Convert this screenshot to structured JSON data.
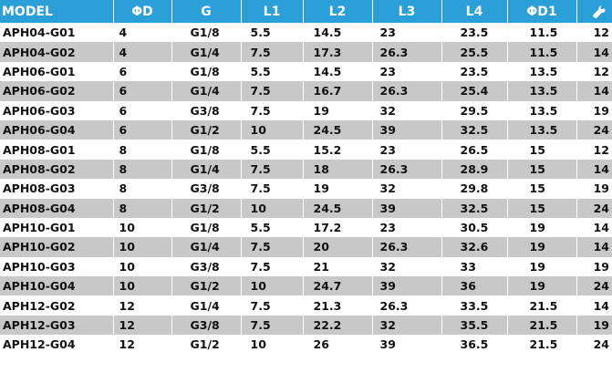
{
  "table": {
    "headers": {
      "model": "MODEL",
      "d": "ΦD",
      "g": "G",
      "l1": "L1",
      "l2": "L2",
      "l3": "L3",
      "l4": "L4",
      "d1": "ΦD1",
      "wrench_icon": "wrench-icon"
    },
    "header_color": "#2a9fd8",
    "stripe_color": "#c8c8c8",
    "rows": [
      {
        "model": "APH04-G01",
        "d": "4",
        "g": "G1/8",
        "l1": "5.5",
        "l2": "14.5",
        "l3": "23",
        "l4": "23.5",
        "d1": "11.5",
        "wr": "12"
      },
      {
        "model": "APH04-G02",
        "d": "4",
        "g": "G1/4",
        "l1": "7.5",
        "l2": "17.3",
        "l3": "26.3",
        "l4": "25.5",
        "d1": "11.5",
        "wr": "14"
      },
      {
        "model": "APH06-G01",
        "d": "6",
        "g": "G1/8",
        "l1": "5.5",
        "l2": "14.5",
        "l3": "23",
        "l4": "23.5",
        "d1": "13.5",
        "wr": "12"
      },
      {
        "model": "APH06-G02",
        "d": "6",
        "g": "G1/4",
        "l1": "7.5",
        "l2": "16.7",
        "l3": "26.3",
        "l4": "25.4",
        "d1": "13.5",
        "wr": "14"
      },
      {
        "model": "APH06-G03",
        "d": "6",
        "g": "G3/8",
        "l1": "7.5",
        "l2": "19",
        "l3": "32",
        "l4": "29.5",
        "d1": "13.5",
        "wr": "19"
      },
      {
        "model": "APH06-G04",
        "d": "6",
        "g": "G1/2",
        "l1": "10",
        "l2": "24.5",
        "l3": "39",
        "l4": "32.5",
        "d1": "13.5",
        "wr": "24"
      },
      {
        "model": "APH08-G01",
        "d": "8",
        "g": "G1/8",
        "l1": "5.5",
        "l2": "15.2",
        "l3": "23",
        "l4": "26.5",
        "d1": "15",
        "wr": "12"
      },
      {
        "model": "APH08-G02",
        "d": "8",
        "g": "G1/4",
        "l1": "7.5",
        "l2": "18",
        "l3": "26.3",
        "l4": "28.9",
        "d1": "15",
        "wr": "14"
      },
      {
        "model": "APH08-G03",
        "d": "8",
        "g": "G3/8",
        "l1": "7.5",
        "l2": "19",
        "l3": "32",
        "l4": "29.8",
        "d1": "15",
        "wr": "19"
      },
      {
        "model": "APH08-G04",
        "d": "8",
        "g": "G1/2",
        "l1": "10",
        "l2": "24.5",
        "l3": "39",
        "l4": "32.5",
        "d1": "15",
        "wr": "24"
      },
      {
        "model": "APH10-G01",
        "d": "10",
        "g": "G1/8",
        "l1": "5.5",
        "l2": "17.2",
        "l3": "23",
        "l4": "30.5",
        "d1": "19",
        "wr": "14"
      },
      {
        "model": "APH10-G02",
        "d": "10",
        "g": "G1/4",
        "l1": "7.5",
        "l2": "20",
        "l3": "26.3",
        "l4": "32.6",
        "d1": "19",
        "wr": "14"
      },
      {
        "model": "APH10-G03",
        "d": "10",
        "g": "G3/8",
        "l1": "7.5",
        "l2": "21",
        "l3": "32",
        "l4": "33",
        "d1": "19",
        "wr": "19"
      },
      {
        "model": "APH10-G04",
        "d": "10",
        "g": "G1/2",
        "l1": "10",
        "l2": "24.7",
        "l3": "39",
        "l4": "36",
        "d1": "19",
        "wr": "24"
      },
      {
        "model": "APH12-G02",
        "d": "12",
        "g": "G1/4",
        "l1": "7.5",
        "l2": "21.3",
        "l3": "26.3",
        "l4": "33.5",
        "d1": "21.5",
        "wr": "14"
      },
      {
        "model": "APH12-G03",
        "d": "12",
        "g": "G3/8",
        "l1": "7.5",
        "l2": "22.2",
        "l3": "32",
        "l4": "35.5",
        "d1": "21.5",
        "wr": "19"
      },
      {
        "model": "APH12-G04",
        "d": "12",
        "g": "G1/2",
        "l1": "10",
        "l2": "26",
        "l3": "39",
        "l4": "36.5",
        "d1": "21.5",
        "wr": "24"
      }
    ]
  }
}
